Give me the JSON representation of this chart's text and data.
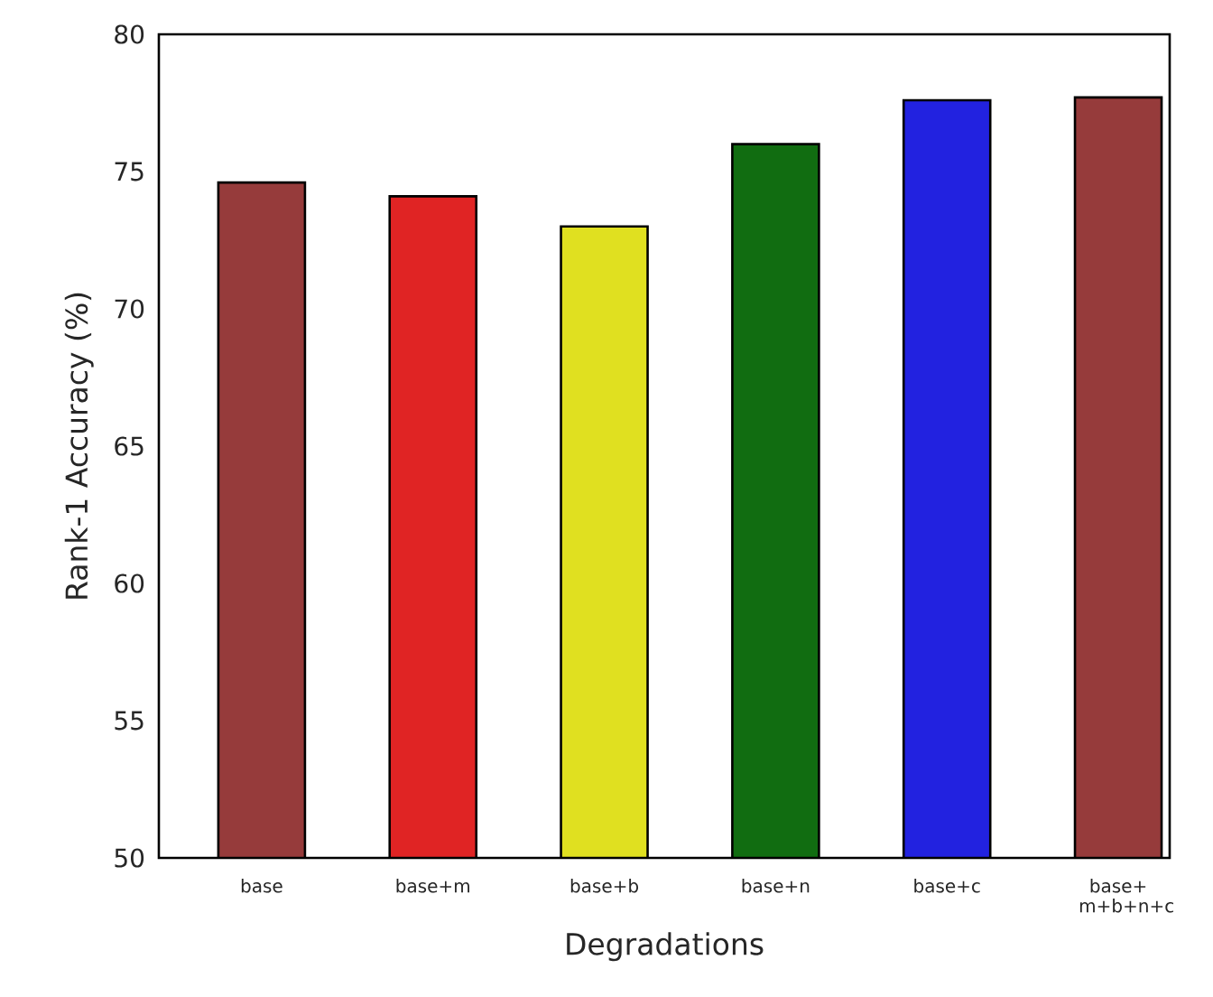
{
  "chart_data": {
    "type": "bar",
    "xlabel": "Degradations",
    "ylabel": "Rank-1 Accuracy (%)",
    "categories": [
      "base",
      "base+m",
      "base+b",
      "base+n",
      "base+c",
      "base+ m+b+n+c"
    ],
    "values": [
      74.6,
      74.1,
      73.0,
      76.0,
      77.6,
      77.7
    ],
    "colors": [
      "#963b3b",
      "#e02424",
      "#e0e020",
      "#116d11",
      "#2222e0",
      "#963b3b"
    ],
    "ylim": [
      50,
      80
    ],
    "yticks": [
      50,
      55,
      60,
      65,
      70,
      75,
      80
    ]
  }
}
